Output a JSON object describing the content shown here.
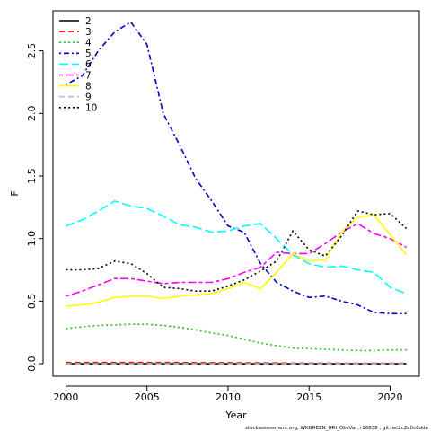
{
  "chart_data": {
    "type": "line",
    "xlabel": "Year",
    "ylabel": "F",
    "xlim": [
      1999.2,
      2021.8
    ],
    "ylim": [
      -0.1,
      2.82
    ],
    "x_ticks": [
      2000,
      2005,
      2010,
      2015,
      2020
    ],
    "y_ticks": [
      0.0,
      0.5,
      1.0,
      1.5,
      2.0,
      2.5
    ],
    "x_tick_labels": [
      "2000",
      "2005",
      "2010",
      "2015",
      "2020"
    ],
    "y_tick_labels": [
      "0.0",
      "0.5",
      "1.0",
      "1.5",
      "2.0",
      "2.5"
    ],
    "legend_position": "top-left",
    "footer": "stockassessment.org, WKGREEN_GRI_ObsVar, r16838 , git: ec2c2a0c6dde",
    "x": [
      2000,
      2001,
      2002,
      2003,
      2004,
      2005,
      2006,
      2007,
      2008,
      2009,
      2010,
      2011,
      2012,
      2013,
      2014,
      2015,
      2016,
      2017,
      2018,
      2019,
      2020,
      2021
    ],
    "series": [
      {
        "name": "2",
        "color": "#000000",
        "dash": "solid",
        "values": [
          0.0,
          0.0,
          0.0,
          0.0,
          0.0,
          0.0,
          0.0,
          0.0,
          0.0,
          0.0,
          0.0,
          0.0,
          0.0,
          0.0,
          0.0,
          0.0,
          0.0,
          0.0,
          0.0,
          0.0,
          0.0,
          0.0
        ]
      },
      {
        "name": "3",
        "color": "#ff0000",
        "dash": "dashed",
        "values": [
          0.01,
          0.01,
          0.01,
          0.01,
          0.01,
          0.01,
          0.01,
          0.01,
          0.008,
          0.008,
          0.008,
          0.007,
          0.007,
          0.006,
          0.005,
          0.005,
          0.005,
          0.004,
          0.004,
          0.004,
          0.004,
          0.004
        ]
      },
      {
        "name": "4",
        "color": "#22c422",
        "dash": "dotted",
        "values": [
          0.28,
          0.295,
          0.305,
          0.31,
          0.315,
          0.315,
          0.305,
          0.29,
          0.27,
          0.245,
          0.225,
          0.195,
          0.165,
          0.145,
          0.125,
          0.12,
          0.115,
          0.11,
          0.105,
          0.105,
          0.11,
          0.11
        ]
      },
      {
        "name": "5",
        "color": "#0000cc",
        "dash": "dotdash",
        "values": [
          2.23,
          2.3,
          2.5,
          2.65,
          2.73,
          2.55,
          2.0,
          1.75,
          1.48,
          1.3,
          1.1,
          1.05,
          0.8,
          0.65,
          0.58,
          0.53,
          0.54,
          0.5,
          0.47,
          0.41,
          0.4,
          0.4
        ]
      },
      {
        "name": "6",
        "color": "#00ffff",
        "dash": "longdash",
        "values": [
          1.1,
          1.15,
          1.22,
          1.3,
          1.26,
          1.24,
          1.18,
          1.11,
          1.09,
          1.05,
          1.06,
          1.1,
          1.12,
          1.0,
          0.87,
          0.8,
          0.77,
          0.78,
          0.75,
          0.73,
          0.61,
          0.56
        ]
      },
      {
        "name": "7",
        "color": "#ff00ff",
        "dash": "twodash",
        "values": [
          0.54,
          0.58,
          0.63,
          0.68,
          0.68,
          0.66,
          0.64,
          0.65,
          0.65,
          0.65,
          0.68,
          0.73,
          0.77,
          0.89,
          0.88,
          0.88,
          0.96,
          1.05,
          1.12,
          1.04,
          1.0,
          0.93
        ]
      },
      {
        "name": "8",
        "color": "#ffff00",
        "dash": "solid",
        "values": [
          0.46,
          0.47,
          0.49,
          0.53,
          0.54,
          0.54,
          0.52,
          0.54,
          0.55,
          0.56,
          0.6,
          0.65,
          0.6,
          0.73,
          0.88,
          0.82,
          0.83,
          1.05,
          1.17,
          1.19,
          1.03,
          0.87
        ]
      },
      {
        "name": "9",
        "color": "#bebebe",
        "dash": "dashed",
        "values": [
          0.0,
          0.0,
          0.0,
          0.0,
          0.0,
          0.0,
          0.0,
          0.0,
          0.0,
          0.0,
          0.0,
          0.0,
          0.0,
          0.0,
          0.0,
          0.0,
          0.0,
          0.0,
          0.0,
          0.0,
          0.0,
          0.0
        ]
      },
      {
        "name": "10",
        "color": "#000000",
        "dash": "dotted",
        "values": [
          0.75,
          0.75,
          0.76,
          0.82,
          0.8,
          0.72,
          0.61,
          0.6,
          0.58,
          0.58,
          0.62,
          0.67,
          0.74,
          0.82,
          1.06,
          0.91,
          0.86,
          1.02,
          1.22,
          1.19,
          1.2,
          1.08
        ]
      }
    ]
  }
}
